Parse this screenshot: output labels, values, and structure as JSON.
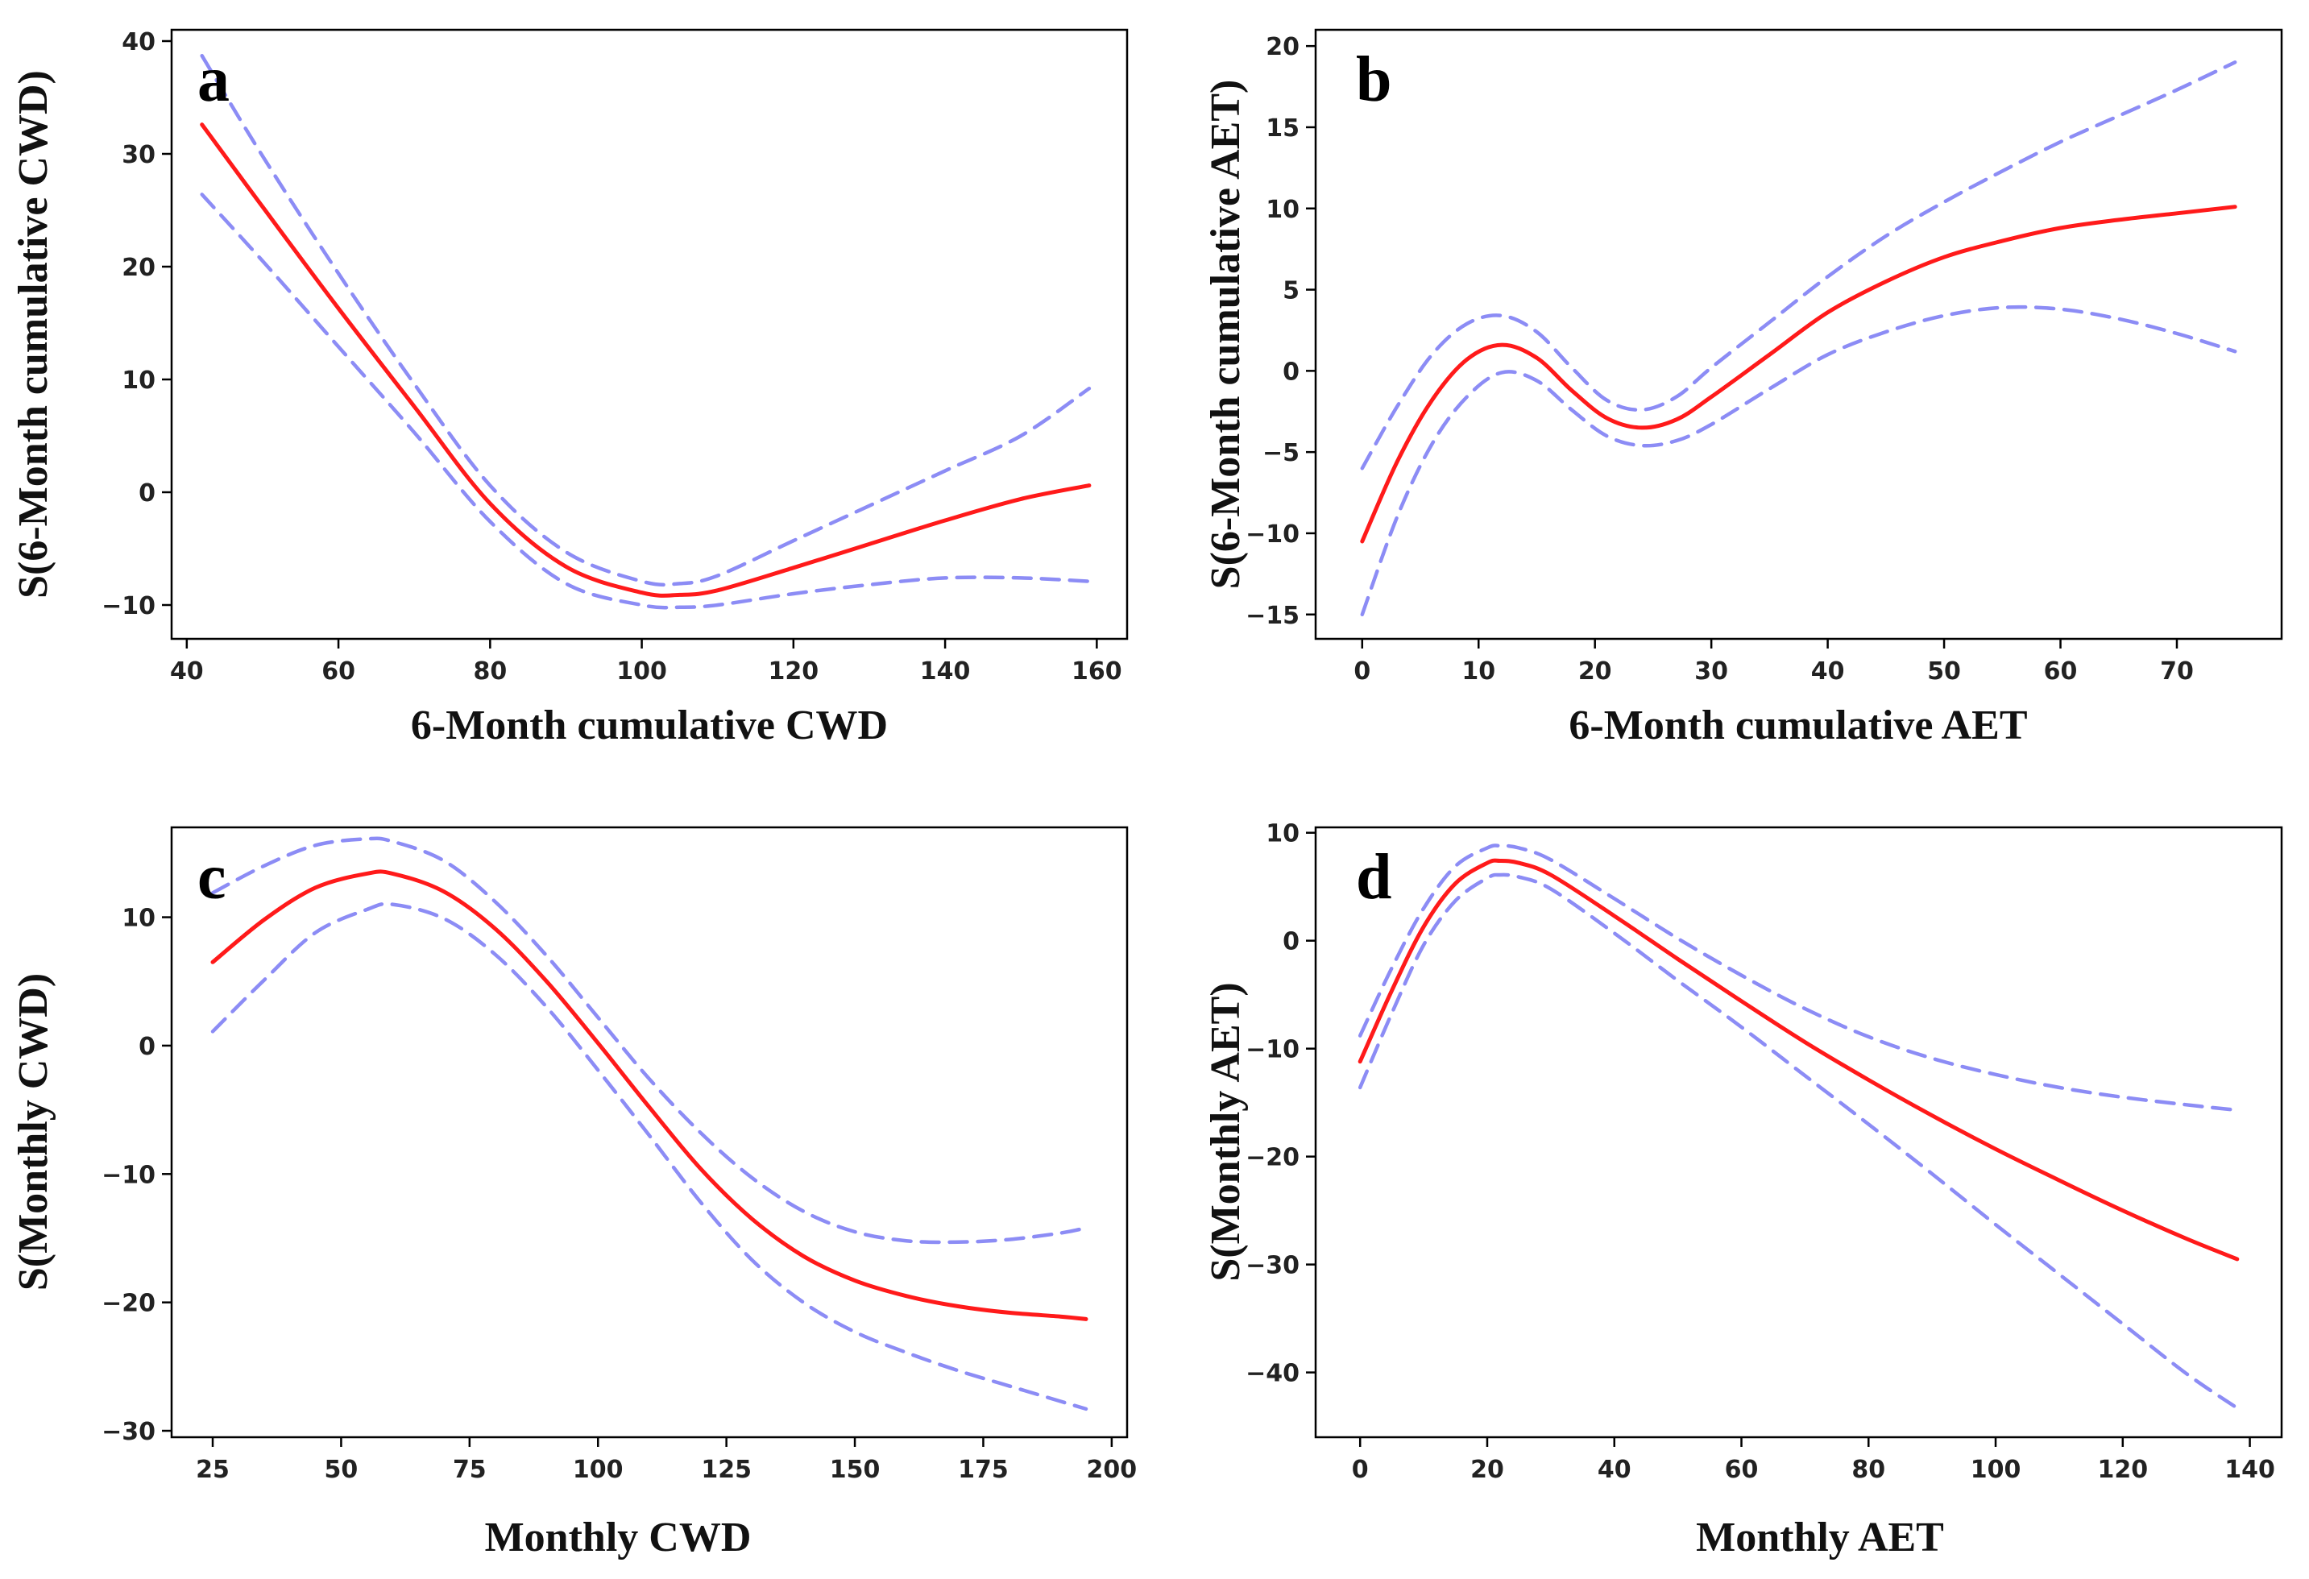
{
  "chart_data": [
    {
      "type": "line",
      "panel": "a",
      "title": "",
      "xlabel": "6-Month cumulative  CWD",
      "ylabel": "S(6-Month cumulative  CWD)",
      "xlim": [
        38,
        164
      ],
      "ylim": [
        -13,
        41
      ],
      "xticks": [
        40,
        60,
        80,
        100,
        120,
        140,
        160
      ],
      "yticks": [
        -10,
        0,
        10,
        20,
        30,
        40
      ],
      "x": [
        42,
        50,
        60,
        70,
        80,
        90,
        100,
        105,
        110,
        120,
        130,
        140,
        150,
        159
      ],
      "series": [
        {
          "name": "fit",
          "values": [
            32.6,
            25.3,
            16.3,
            7.6,
            -1.0,
            -6.6,
            -8.9,
            -9.1,
            -8.7,
            -6.7,
            -4.6,
            -2.5,
            -0.6,
            0.6
          ]
        },
        {
          "name": "upper",
          "values": [
            38.7,
            29.8,
            19.4,
            9.6,
            0.6,
            -5.3,
            -7.9,
            -8.1,
            -7.4,
            -4.3,
            -1.2,
            1.9,
            5.0,
            9.2
          ]
        },
        {
          "name": "lower",
          "values": [
            26.4,
            20.5,
            12.9,
            5.3,
            -2.6,
            -8.1,
            -10.0,
            -10.2,
            -10.0,
            -9.0,
            -8.2,
            -7.6,
            -7.6,
            -7.9
          ]
        }
      ],
      "grid": false
    },
    {
      "type": "line",
      "panel": "b",
      "title": "",
      "xlabel": "6-Month cumulative  AET",
      "ylabel": "S(6-Month cumulative  AET)",
      "xlim": [
        -4,
        79
      ],
      "ylim": [
        -16.5,
        21
      ],
      "xticks": [
        0,
        10,
        20,
        30,
        40,
        50,
        60,
        70
      ],
      "yticks": [
        -15,
        -10,
        -5,
        0,
        5,
        10,
        15,
        20
      ],
      "x": [
        0,
        3,
        6,
        9,
        12,
        15,
        18,
        21,
        24,
        27,
        30,
        35,
        40,
        45,
        50,
        55,
        60,
        65,
        70,
        75
      ],
      "series": [
        {
          "name": "fit",
          "values": [
            -10.5,
            -5.6,
            -1.8,
            0.7,
            1.6,
            0.8,
            -1.2,
            -2.9,
            -3.5,
            -3.0,
            -1.6,
            1.0,
            3.6,
            5.5,
            7.0,
            8.0,
            8.8,
            9.3,
            9.7,
            10.1
          ]
        },
        {
          "name": "upper",
          "values": [
            -6.0,
            -2.2,
            1.0,
            2.9,
            3.4,
            2.4,
            0.2,
            -1.8,
            -2.4,
            -1.6,
            0.2,
            3.0,
            5.8,
            8.3,
            10.4,
            12.3,
            14.1,
            15.7,
            17.3,
            19.0
          ]
        },
        {
          "name": "lower",
          "values": [
            -15.0,
            -9.0,
            -4.5,
            -1.6,
            -0.1,
            -0.6,
            -2.4,
            -4.0,
            -4.6,
            -4.3,
            -3.3,
            -1.1,
            1.0,
            2.4,
            3.4,
            3.9,
            3.8,
            3.2,
            2.3,
            1.2
          ]
        }
      ],
      "grid": false
    },
    {
      "type": "line",
      "panel": "c",
      "title": "",
      "xlabel": "Monthly  CWD",
      "ylabel": "S(Monthly CWD)",
      "xlim": [
        17,
        203
      ],
      "ylim": [
        -30.5,
        17
      ],
      "xticks": [
        25,
        50,
        75,
        100,
        125,
        150,
        175,
        200
      ],
      "yticks": [
        -30,
        -20,
        -10,
        0,
        10
      ],
      "x": [
        25,
        35,
        45,
        55,
        60,
        70,
        80,
        90,
        100,
        110,
        120,
        130,
        140,
        150,
        160,
        170,
        180,
        190,
        195
      ],
      "series": [
        {
          "name": "fit",
          "values": [
            6.5,
            9.8,
            12.3,
            13.4,
            13.4,
            12.0,
            9.1,
            5.0,
            0.2,
            -4.8,
            -9.6,
            -13.5,
            -16.4,
            -18.3,
            -19.5,
            -20.3,
            -20.8,
            -21.1,
            -21.3
          ]
        },
        {
          "name": "upper",
          "values": [
            11.9,
            14.0,
            15.6,
            16.1,
            15.9,
            14.4,
            11.2,
            7.0,
            2.2,
            -2.6,
            -6.8,
            -10.3,
            -12.9,
            -14.5,
            -15.2,
            -15.3,
            -15.1,
            -14.6,
            -14.2
          ]
        },
        {
          "name": "lower",
          "values": [
            1.1,
            5.1,
            8.8,
            10.6,
            11.0,
            9.9,
            7.1,
            3.0,
            -1.9,
            -7.0,
            -12.2,
            -16.7,
            -20.0,
            -22.3,
            -23.9,
            -25.3,
            -26.5,
            -27.7,
            -28.3
          ]
        }
      ],
      "grid": false
    },
    {
      "type": "line",
      "panel": "d",
      "title": "",
      "xlabel": "Monthly  AET",
      "ylabel": "S(Monthly AET)",
      "xlim": [
        -7,
        145
      ],
      "ylim": [
        -46,
        10.5
      ],
      "xticks": [
        0,
        20,
        40,
        60,
        80,
        100,
        120,
        140
      ],
      "yticks": [
        -40,
        -30,
        -20,
        -10,
        0,
        10
      ],
      "x": [
        0,
        5,
        10,
        15,
        20,
        22,
        25,
        30,
        40,
        50,
        60,
        70,
        80,
        90,
        100,
        110,
        120,
        130,
        138
      ],
      "series": [
        {
          "name": "fit",
          "values": [
            -11.2,
            -4.6,
            1.3,
            5.3,
            7.2,
            7.4,
            7.2,
            6.1,
            2.3,
            -1.7,
            -5.6,
            -9.4,
            -12.9,
            -16.2,
            -19.3,
            -22.2,
            -25.0,
            -27.6,
            -29.5
          ]
        },
        {
          "name": "upper",
          "values": [
            -8.8,
            -2.5,
            3.0,
            6.9,
            8.6,
            8.8,
            8.6,
            7.5,
            3.9,
            0.2,
            -3.2,
            -6.3,
            -8.9,
            -10.9,
            -12.4,
            -13.6,
            -14.5,
            -15.2,
            -15.7
          ]
        },
        {
          "name": "lower",
          "values": [
            -13.6,
            -6.7,
            -0.4,
            3.7,
            5.8,
            6.1,
            5.9,
            4.8,
            0.7,
            -3.7,
            -8.0,
            -12.5,
            -17.0,
            -21.6,
            -26.3,
            -30.9,
            -35.5,
            -40.1,
            -43.3
          ]
        }
      ],
      "grid": false
    }
  ]
}
